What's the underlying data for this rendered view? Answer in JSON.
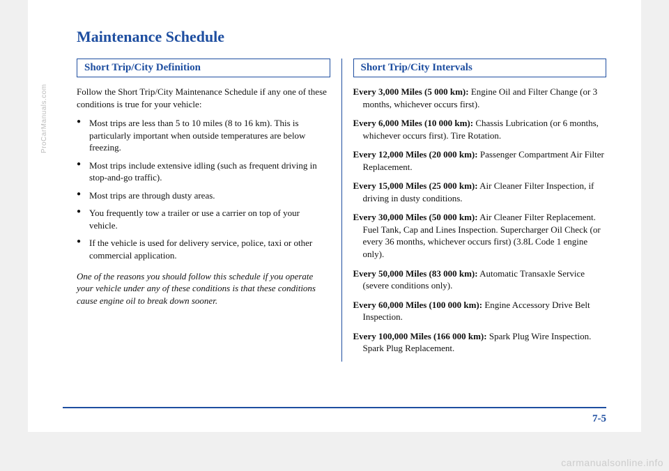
{
  "title": "Maintenance Schedule",
  "pageNumber": "7-5",
  "sideWatermark": "ProCarManuals.com",
  "bottomWatermark": "carmanualsonline.info",
  "left": {
    "heading": "Short Trip/City Definition",
    "intro": "Follow the Short Trip/City Maintenance Schedule if any one of these conditions is true for your vehicle:",
    "bullets": [
      "Most trips are less than 5 to 10 miles (8 to 16 km). This is particularly important when outside temperatures are below freezing.",
      "Most trips include extensive idling (such as frequent driving in stop-and-go traffic).",
      "Most trips are through dusty areas.",
      "You frequently tow a trailer or use a carrier on top of your vehicle.",
      "If the vehicle is used for delivery service, police, taxi or other commercial application."
    ],
    "note": "One of the reasons you should follow this schedule if you operate your vehicle under any of these conditions is that these conditions cause engine oil to break down sooner."
  },
  "right": {
    "heading": "Short Trip/City Intervals",
    "intervals": [
      {
        "bold": "Every 3,000 Miles (5 000 km):",
        "text": " Engine Oil and Filter Change (or 3 months, whichever occurs first)."
      },
      {
        "bold": "Every 6,000 Miles (10 000 km):",
        "text": " Chassis Lubrication (or 6 months, whichever occurs first). Tire Rotation."
      },
      {
        "bold": "Every 12,000 Miles (20 000 km):",
        "text": " Passenger Compartment Air Filter Replacement."
      },
      {
        "bold": "Every 15,000 Miles (25 000 km):",
        "text": " Air Cleaner Filter Inspection, if driving in dusty conditions."
      },
      {
        "bold": "Every 30,000 Miles (50 000 km):",
        "text": " Air Cleaner Filter Replacement. Fuel Tank, Cap and Lines Inspection. Supercharger Oil Check (or every 36 months, whichever occurs first) (3.8L Code 1 engine only)."
      },
      {
        "bold": "Every 50,000 Miles (83 000 km):",
        "text": " Automatic Transaxle Service (severe conditions only)."
      },
      {
        "bold": "Every 60,000 Miles (100 000 km):",
        "text": " Engine Accessory Drive Belt Inspection."
      },
      {
        "bold": "Every 100,000 Miles (166 000 km):",
        "text": " Spark Plug Wire Inspection. Spark Plug Replacement."
      }
    ]
  }
}
